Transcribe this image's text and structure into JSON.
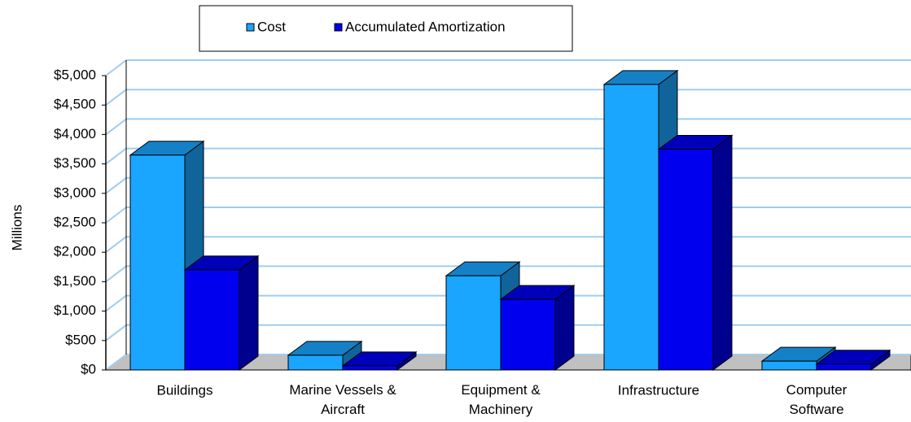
{
  "chart_data": {
    "type": "bar3d",
    "categories": [
      "Buildings",
      "Marine Vessels & Aircraft",
      "Equipment & Machinery",
      "Infrastructure",
      "Computer Software"
    ],
    "series": [
      {
        "name": "Cost",
        "color": "#1aa6ff",
        "values": [
          3650,
          250,
          1600,
          4850,
          150
        ]
      },
      {
        "name": "Accumulated Amortization",
        "color": "#0000ee",
        "values": [
          1700,
          70,
          1200,
          3750,
          100
        ]
      }
    ],
    "ylabel": "Millions",
    "ylim": [
      0,
      5000
    ],
    "yticks": [
      {
        "value": 0,
        "label": "$0"
      },
      {
        "value": 500,
        "label": "$500"
      },
      {
        "value": 1000,
        "label": "$1,000"
      },
      {
        "value": 1500,
        "label": "$1,500"
      },
      {
        "value": 2000,
        "label": "$2,000"
      },
      {
        "value": 2500,
        "label": "$2,500"
      },
      {
        "value": 3000,
        "label": "$3,000"
      },
      {
        "value": 3500,
        "label": "$3,500"
      },
      {
        "value": 4000,
        "label": "$4,000"
      },
      {
        "value": 4500,
        "label": "$4,500"
      },
      {
        "value": 5000,
        "label": "$5,000"
      }
    ],
    "grid": true,
    "legend": "top"
  }
}
